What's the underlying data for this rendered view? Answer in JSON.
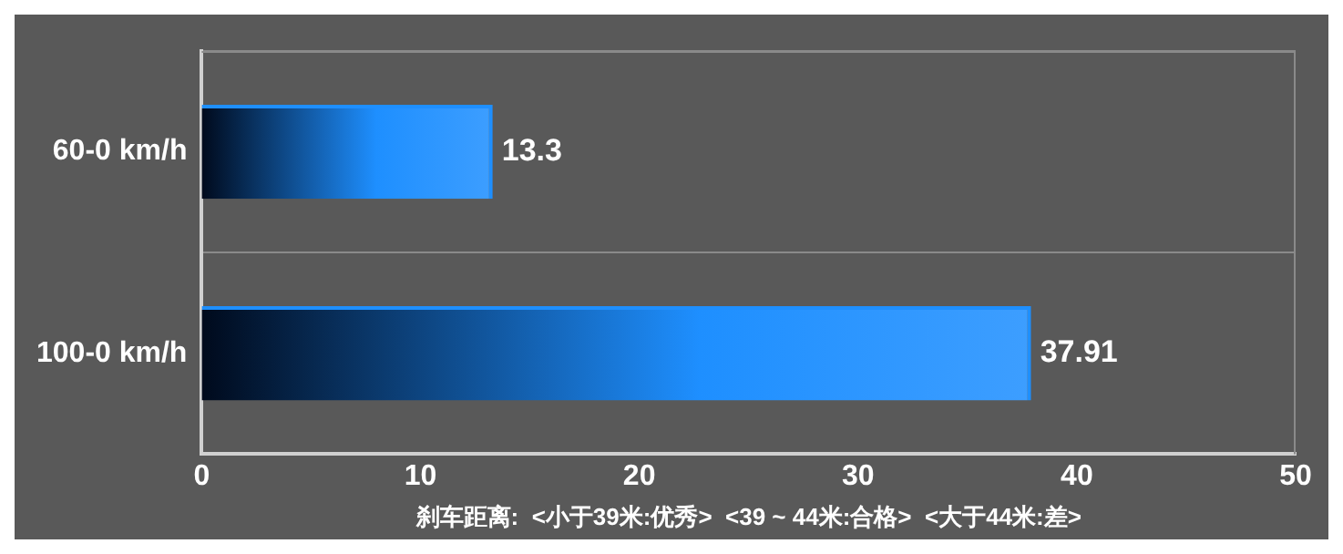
{
  "chart_data": {
    "type": "bar",
    "orientation": "horizontal",
    "categories": [
      "60-0 km/h",
      "100-0 km/h"
    ],
    "values": [
      13.3,
      37.91
    ],
    "color": "#1e8fff",
    "xlim": [
      0,
      50
    ],
    "xticks": [
      0,
      10,
      20,
      30,
      40,
      50
    ],
    "xlabel": "刹车距离:  <小于39米:优秀>  <39 ~ 44米:合格>  <大于44米:差>",
    "data_labels": true,
    "grid": "y",
    "legend": false
  }
}
